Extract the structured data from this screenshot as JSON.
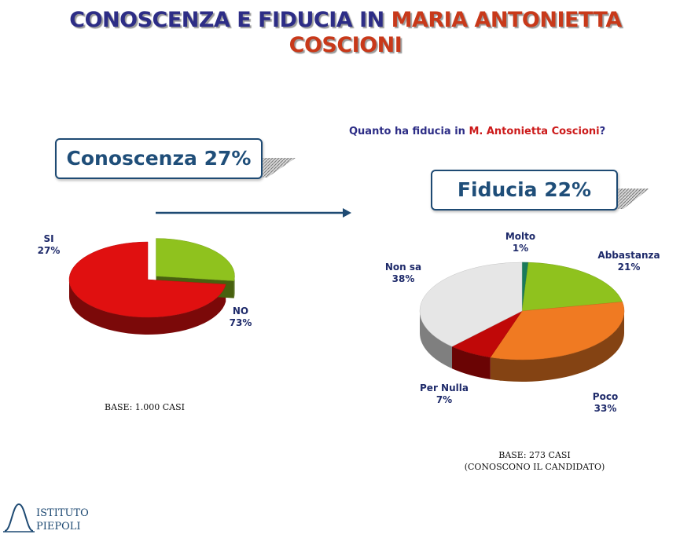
{
  "header": {
    "title_part1": "CONOSCENZA E FIDUCIA IN",
    "title_part2": "MARIA ANTONIETTA",
    "title_line2": "COSCIONI"
  },
  "question": {
    "prefix": "Quanto ha fiducia in",
    "name": "M. Antonietta Coscioni",
    "suffix": "?"
  },
  "boxes": {
    "conoscenza": "Conoscenza 27%",
    "fiducia": "Fiducia 22%"
  },
  "bases": {
    "left": "BASE: 1.000 CASI",
    "right_line1": "BASE: 273 CASI",
    "right_line2": "(CONOSCONO IL CANDIDATO)"
  },
  "logo": {
    "line1": "ISTITUTO",
    "line2": "PIEPOLI",
    "icon": "bell-curve-logo-icon"
  },
  "colors": {
    "navy": "#2d2d86",
    "red_title": "#c8391a",
    "box_border": "#1e4a73",
    "arrow": "#1e4a73"
  },
  "chart_data": [
    {
      "type": "pie",
      "title": "Conoscenza 27%",
      "slices": [
        {
          "label": "SI",
          "value": 27,
          "value_label": "27%",
          "color": "#8fc21e"
        },
        {
          "label": "NO",
          "value": 73,
          "value_label": "73%",
          "color": "#e01010"
        }
      ]
    },
    {
      "type": "pie",
      "title": "Fiducia 22%",
      "slices": [
        {
          "label": "Molto",
          "value": 1,
          "value_label": "1%",
          "color": "#1a7a5a"
        },
        {
          "label": "Abbastanza",
          "value": 21,
          "value_label": "21%",
          "color": "#8fc21e"
        },
        {
          "label": "Poco",
          "value": 33,
          "value_label": "33%",
          "color": "#f07a22"
        },
        {
          "label": "Per Nulla",
          "value": 7,
          "value_label": "7%",
          "color": "#c00808"
        },
        {
          "label": "Non sa",
          "value": 38,
          "value_label": "38%",
          "color": "#e6e6e6"
        }
      ]
    }
  ]
}
